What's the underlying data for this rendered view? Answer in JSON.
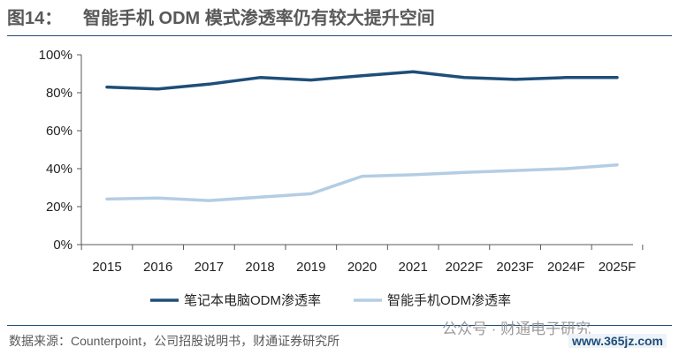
{
  "header": {
    "figure_label": "图14：",
    "title_text": "智能手机 ODM 模式渗透率仍有较大提升空间"
  },
  "chart_data": {
    "type": "line",
    "x": [
      "2015",
      "2016",
      "2017",
      "2018",
      "2019",
      "2020",
      "2021",
      "2022F",
      "2023F",
      "2024F",
      "2025F"
    ],
    "y_ticks": [
      "0%",
      "20%",
      "40%",
      "60%",
      "80%",
      "100%"
    ],
    "ylim": [
      0,
      100
    ],
    "ylabel": "",
    "xlabel": "",
    "legend_position": "bottom",
    "grid": false,
    "series": [
      {
        "name": "笔记本电脑ODM渗透率",
        "color": "#1f4e79",
        "values": [
          83,
          82,
          84.5,
          88,
          86.7,
          89,
          91,
          88,
          87,
          88,
          88
        ]
      },
      {
        "name": "智能手机ODM渗透率",
        "color": "#b4cde3",
        "values": [
          24,
          24.5,
          23.2,
          25,
          26.8,
          36,
          36.8,
          38,
          39,
          40,
          42
        ]
      }
    ]
  },
  "footer": {
    "source": "数据来源：Counterpoint，公司招股说明书，财通证券研究所",
    "watermark": "公众号 · 财通电子研究",
    "watermark_url": "www.365jz.com"
  }
}
